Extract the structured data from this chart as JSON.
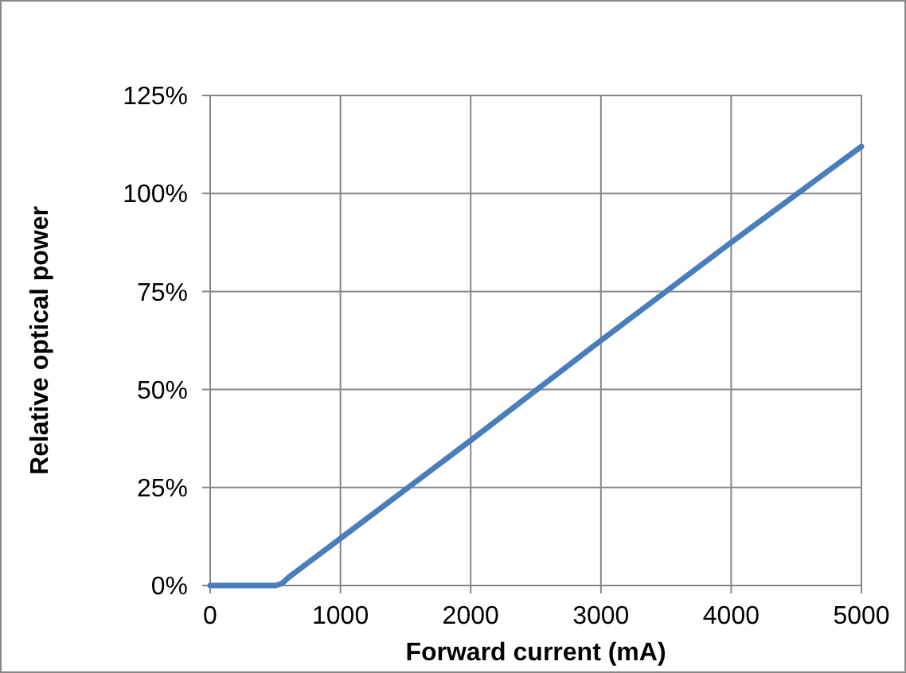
{
  "chart_data": {
    "type": "line",
    "xlabel": "Forward current (mA)",
    "ylabel": "Relative optical power",
    "x": [
      0,
      500,
      550,
      600,
      700,
      1000,
      1600,
      2000,
      3000,
      4000,
      5000
    ],
    "series": [
      {
        "color": "#4a7ebb",
        "values": [
          0,
          0,
          0.5,
          2,
          4.5,
          12,
          27,
          37,
          62.5,
          87.5,
          112
        ]
      }
    ],
    "xlim": [
      0,
      5000
    ],
    "xticks": [
      0,
      1000,
      2000,
      3000,
      4000,
      5000
    ],
    "ylim": [
      0,
      125
    ],
    "yticks": [
      {
        "value": 0,
        "label": "0%"
      },
      {
        "value": 25,
        "label": "25%"
      },
      {
        "value": 50,
        "label": "50%"
      },
      {
        "value": 75,
        "label": "75%"
      },
      {
        "value": 100,
        "label": "100%"
      },
      {
        "value": 125,
        "label": "125%"
      }
    ],
    "grid": true,
    "marker": "none",
    "line_style": "solid"
  }
}
